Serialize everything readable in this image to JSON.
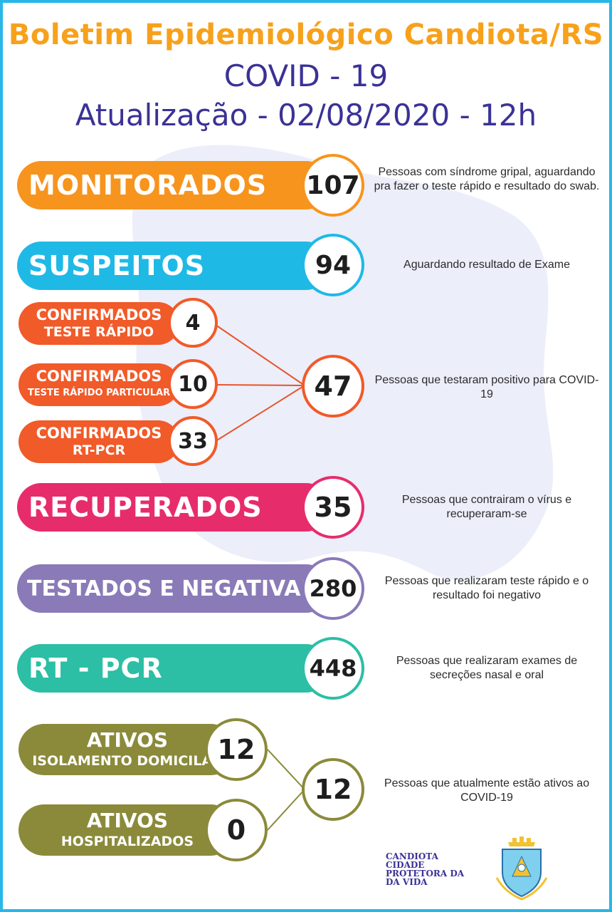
{
  "header": {
    "title": "Boletim Epidemiológico Candiota/RS",
    "subtitle": "COVID - 19",
    "update": "Atualização - 02/08/2020 - 12h"
  },
  "colors": {
    "orange": "#f7941d",
    "cyan": "#1fb9e6",
    "red_orange": "#f15a29",
    "pink": "#e72c6c",
    "purple": "#8a7ab8",
    "teal": "#2cbfa5",
    "olive": "#8a8a3a",
    "navy": "#3a3296"
  },
  "monitorados": {
    "label": "MONITORADOS",
    "value": "107",
    "desc": "Pessoas com síndrome gripal, aguardando pra fazer o teste rápido e resultado do swab."
  },
  "suspeitos": {
    "label": "SUSPEITOS",
    "value": "94",
    "desc": "Aguardando resultado de Exame"
  },
  "confirmados": {
    "teste_rapido": {
      "line1": "CONFIRMADOS",
      "line2": "TESTE RÁPIDO",
      "value": "4"
    },
    "teste_particular": {
      "line1": "CONFIRMADOS",
      "line2": "TESTE RÁPIDO PARTICULAR",
      "value": "10"
    },
    "rt_pcr": {
      "line1": "CONFIRMADOS",
      "line2": "RT-PCR",
      "value": "33"
    },
    "total": "47",
    "desc": "Pessoas que testaram positivo para COVID-19"
  },
  "recuperados": {
    "label": "RECUPERADOS",
    "value": "35",
    "desc": "Pessoas que contrairam o vírus e recuperaram-se"
  },
  "testados": {
    "label": "TESTADOS E NEGATIVADOS",
    "value": "280",
    "desc": "Pessoas que realizaram teste rápido e o resultado foi negativo"
  },
  "rtpcr": {
    "label": "RT - PCR",
    "value": "448",
    "desc": "Pessoas que realizaram exames de secreções nasal e oral"
  },
  "ativos": {
    "domicilar": {
      "line1": "ATIVOS",
      "line2": "ISOLAMENTO DOMICILAR",
      "value": "12"
    },
    "hospitalizados": {
      "line1": "ATIVOS",
      "line2": "HOSPITALIZADOS",
      "value": "0"
    },
    "total": "12",
    "desc": "Pessoas que atualmente estão ativos ao COVID-19"
  },
  "footer": {
    "line1": "CANDIOTA",
    "line2": "CIDADE",
    "line3": "PROTETORA DA",
    "line4": "DA VIDA"
  }
}
